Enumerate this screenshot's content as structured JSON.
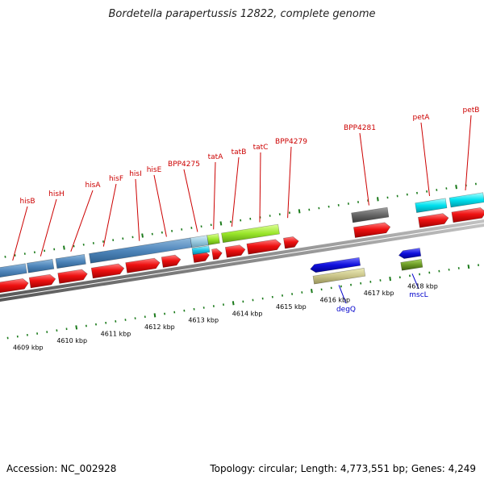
{
  "title": "Bordetella parapertussis 12822, complete genome",
  "footer": {
    "accession": "Accession: NC_002928",
    "stats": "Topology: circular; Length: 4,773,551 bp; Genes: 4,249"
  },
  "colors": {
    "cds": "#ee1111",
    "backbone": "#8a8a8a",
    "label_upper": "#cc0000",
    "label_lower": "#0000cc",
    "tick": "#1a7a1a"
  },
  "ticks": [
    {
      "label": "4609 kbp"
    },
    {
      "label": "4610 kbp"
    },
    {
      "label": "4611 kbp"
    },
    {
      "label": "4612 kbp"
    },
    {
      "label": "4613 kbp"
    },
    {
      "label": "4614 kbp"
    },
    {
      "label": "4615 kbp"
    },
    {
      "label": "4616 kbp"
    },
    {
      "label": "4617 kbp"
    },
    {
      "label": "4618 kbp"
    }
  ],
  "genes_forward": [
    {
      "label": "hisB"
    },
    {
      "label": "hisH"
    },
    {
      "label": "hisA"
    },
    {
      "label": "hisF"
    },
    {
      "label": "hisI"
    },
    {
      "label": "hisE"
    },
    {
      "label": "BPP4275"
    },
    {
      "label": "tatA"
    },
    {
      "label": "tatB"
    },
    {
      "label": "tatC"
    },
    {
      "label": "BPP4279"
    },
    {
      "label": "BPP4281"
    },
    {
      "label": "petA"
    },
    {
      "label": "petB"
    }
  ],
  "genes_reverse": [
    {
      "label": "degQ"
    },
    {
      "label": "mscL"
    }
  ]
}
